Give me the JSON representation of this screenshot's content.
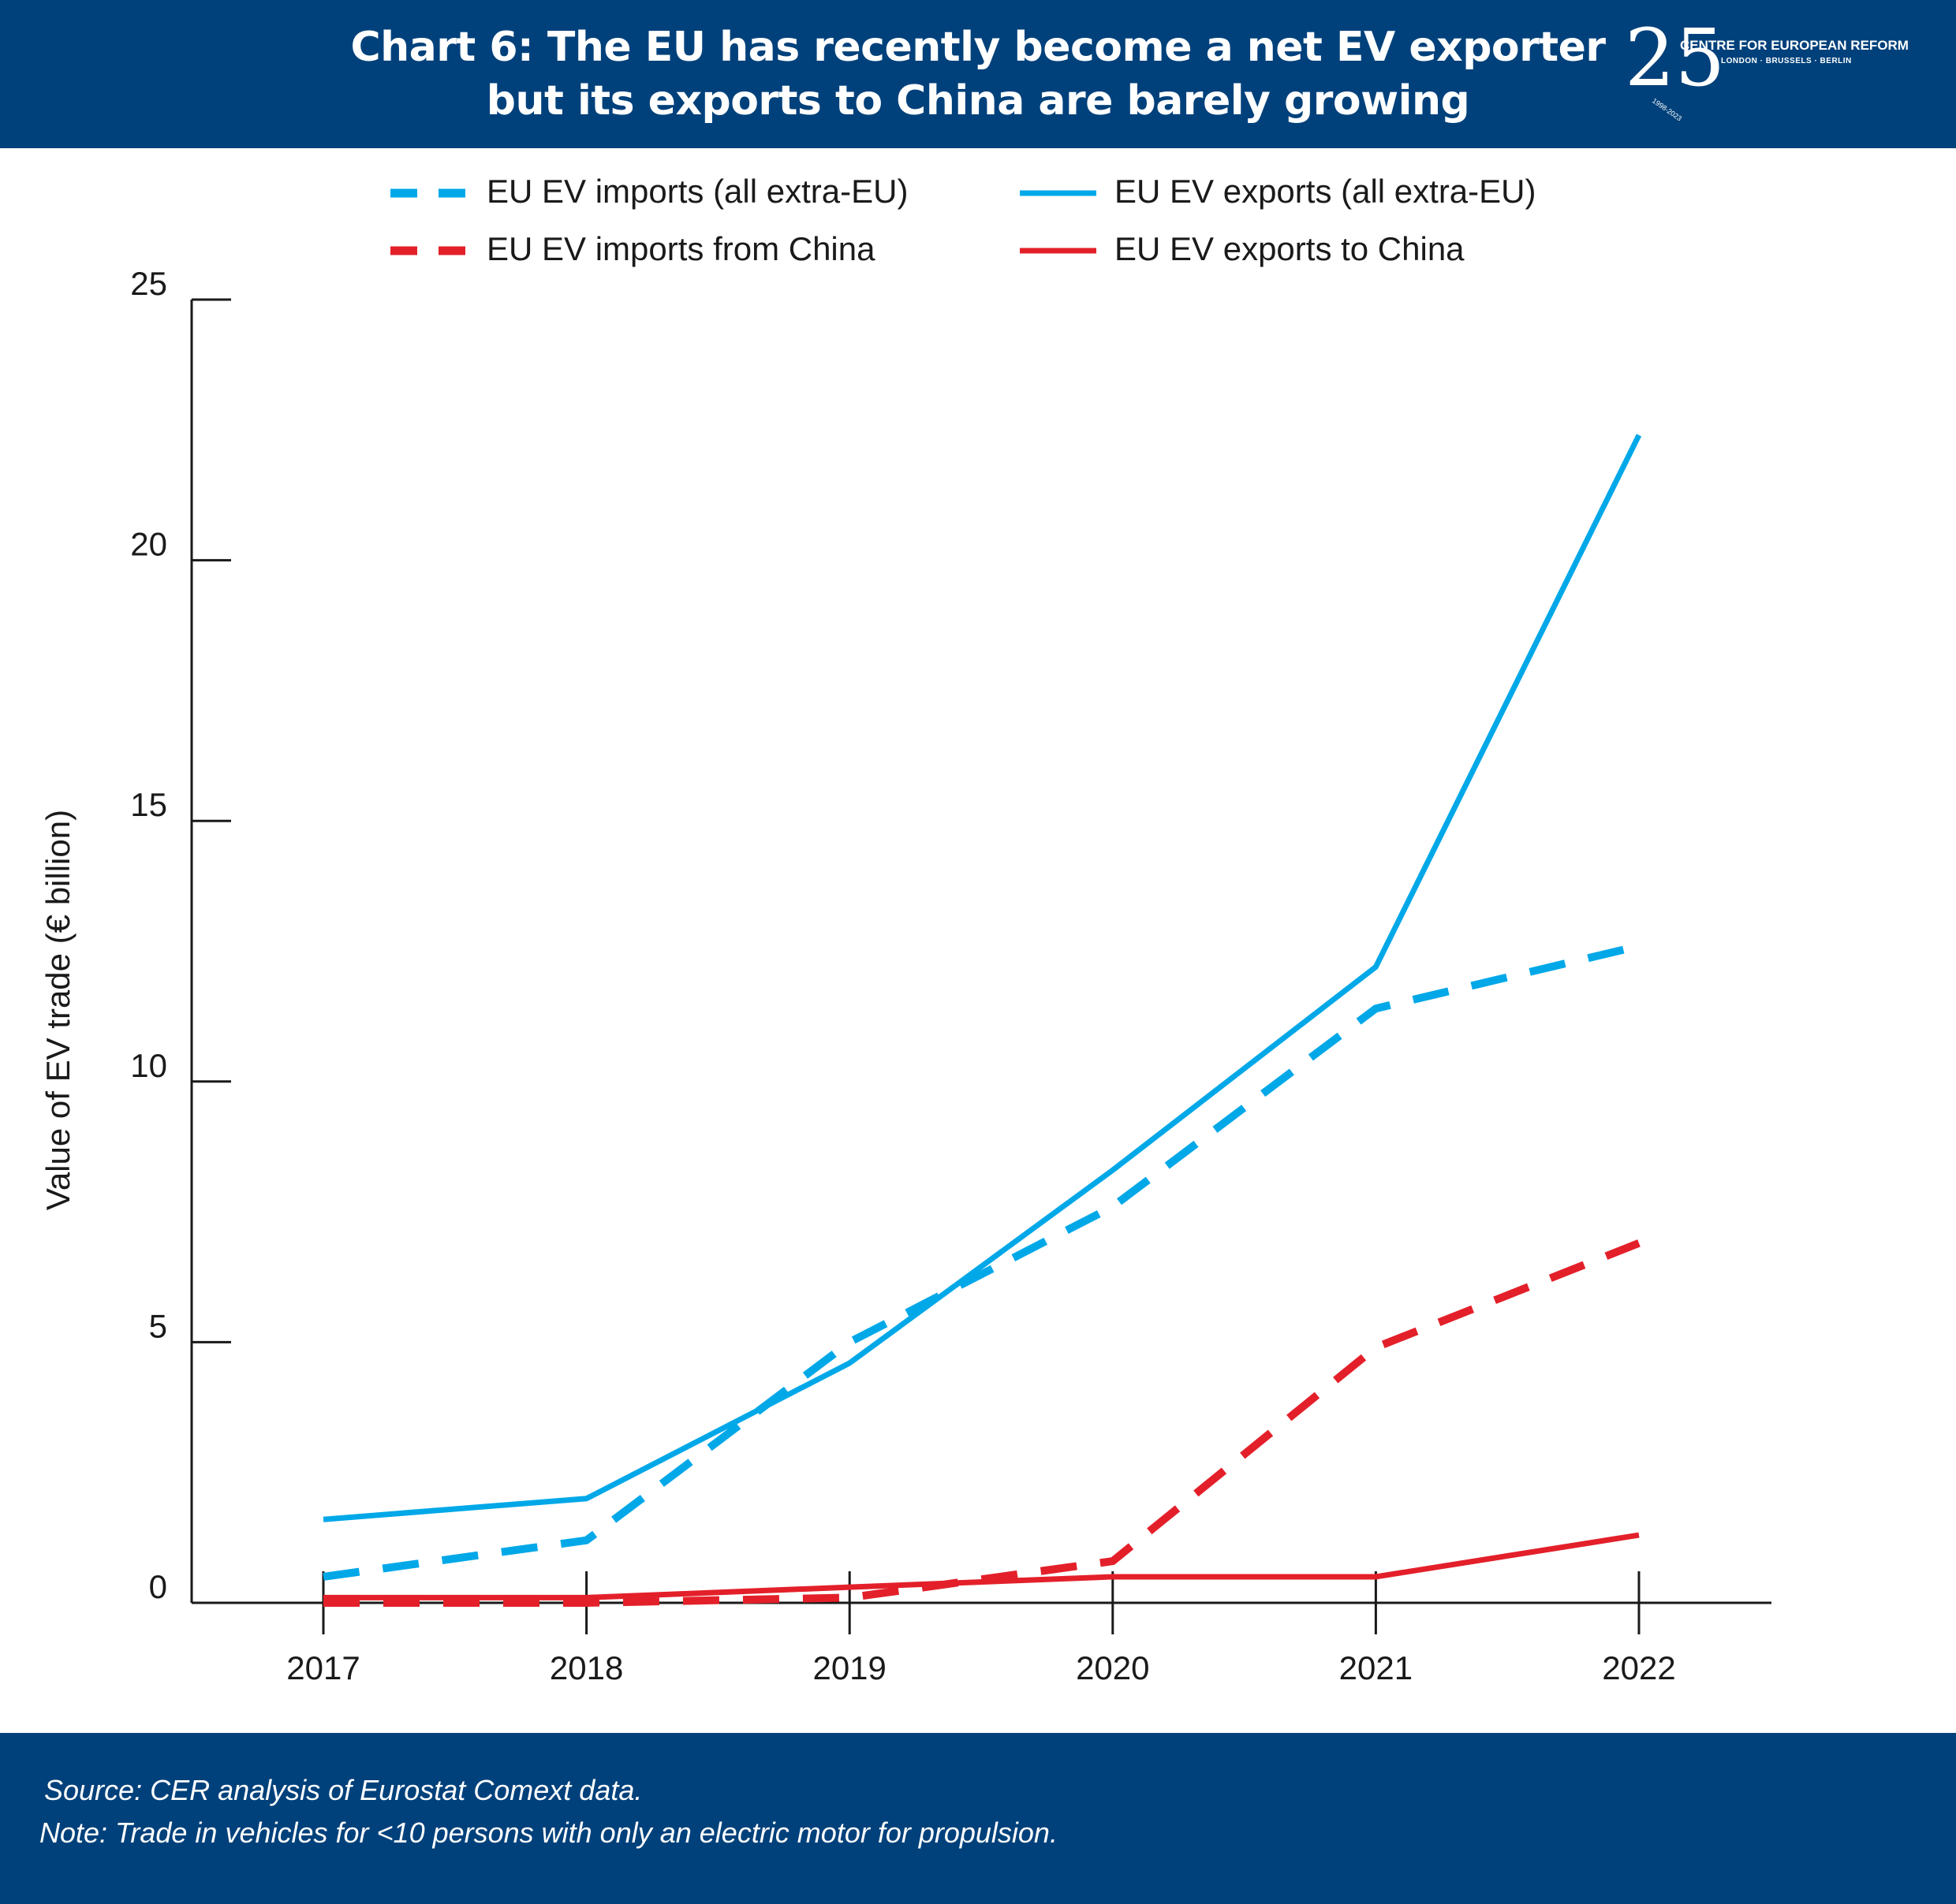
{
  "header": {
    "title_line1": "Chart 6: The EU has recently become a net EV exporter",
    "title_line2": "but its exports to China are barely growing",
    "logo": {
      "number": "25",
      "org": "CENTRE FOR EUROPEAN REFORM",
      "cities": "LONDON · BRUSSELS · BERLIN",
      "years": "1998-2023"
    }
  },
  "footer": {
    "source": "Source: CER analysis of Eurostat Comext data.",
    "note": "Note: Trade in vehicles for <10 persons with only an electric motor for propulsion."
  },
  "colors": {
    "band": "#00417b",
    "blue": "#00a8e8",
    "red": "#e3202a",
    "axis": "#1a1a1a"
  },
  "chart_data": {
    "type": "line",
    "title": "Chart 6: The EU has recently become a net EV exporter but its exports to China are barely growing",
    "xlabel": "",
    "ylabel": "Value of EV trade (€ billion)",
    "categories": [
      "2017",
      "2018",
      "2019",
      "2020",
      "2021",
      "2022"
    ],
    "ylim": [
      0,
      25
    ],
    "yticks": [
      0,
      5,
      10,
      15,
      20,
      25
    ],
    "grid": false,
    "legend_position": "top",
    "series": [
      {
        "name": "EU EV imports (all extra-EU)",
        "color": "#00a8e8",
        "dashed": true,
        "values": [
          0.5,
          1.2,
          5.0,
          7.6,
          11.4,
          12.6
        ]
      },
      {
        "name": "EU EV exports (all extra-EU)",
        "color": "#00a8e8",
        "dashed": false,
        "values": [
          1.6,
          2.0,
          4.6,
          8.3,
          12.2,
          22.4
        ]
      },
      {
        "name": "EU EV imports from China",
        "color": "#e3202a",
        "dashed": true,
        "values": [
          0.0,
          0.0,
          0.1,
          0.8,
          4.9,
          6.9
        ]
      },
      {
        "name": "EU EV exports to China",
        "color": "#e3202a",
        "dashed": false,
        "values": [
          0.1,
          0.1,
          0.3,
          0.5,
          0.5,
          1.3
        ]
      }
    ]
  }
}
